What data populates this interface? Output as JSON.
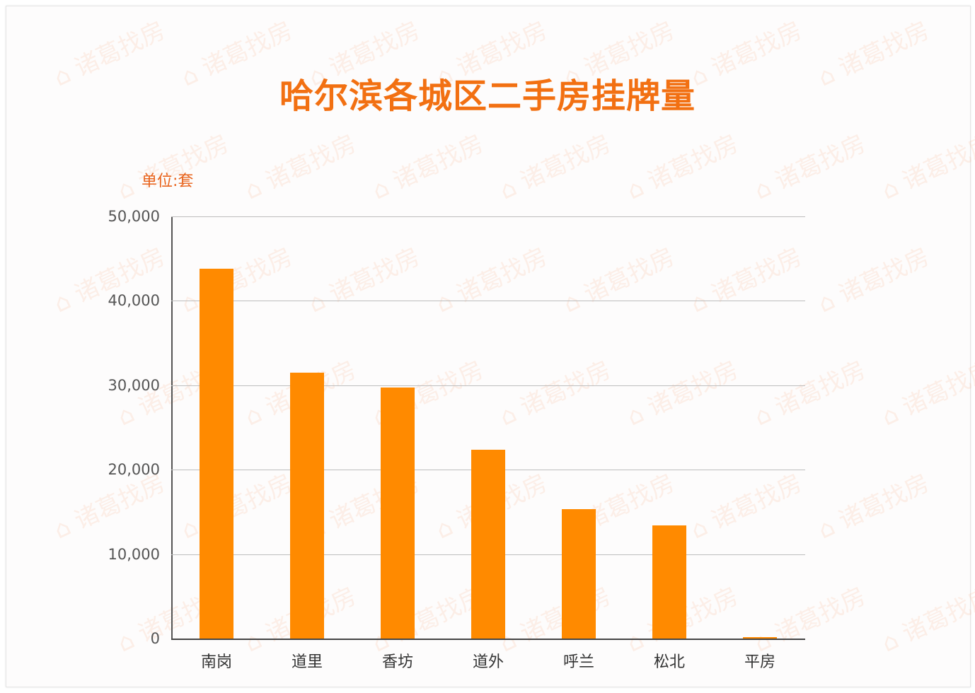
{
  "chart_data": {
    "type": "bar",
    "title": "哈尔滨各城区二手房挂牌量",
    "unit_label": "单位:套",
    "xlabel": "",
    "ylabel": "",
    "categories": [
      "南岗",
      "道里",
      "香坊",
      "道外",
      "呼兰",
      "松北",
      "平房"
    ],
    "values": [
      43800,
      31500,
      29700,
      22400,
      15300,
      13400,
      200
    ],
    "ylim": [
      0,
      50000
    ],
    "yticks": [
      "0",
      "10,000",
      "20,000",
      "30,000",
      "40,000",
      "50,000"
    ],
    "grid": true,
    "legend": "none",
    "bar_color": "#ff8a00",
    "title_color": "#f27012"
  },
  "watermark": "诸葛找房"
}
